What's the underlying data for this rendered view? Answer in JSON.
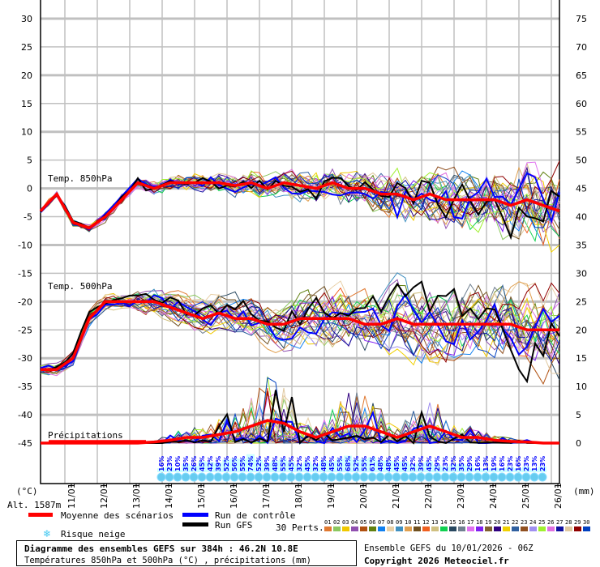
{
  "chart_data": {
    "type": "line",
    "title": "Diagramme des ensembles GEFS sur 384h : 46.2N 10.8E",
    "subtitle": "Températures 850hPa et 500hPa (°C) , précipitations (mm)",
    "left_axis": {
      "label": "(°C)",
      "ticks": [
        30,
        25,
        20,
        15,
        10,
        5,
        0,
        -5,
        -10,
        -15,
        -20,
        -25,
        -30,
        -35,
        -40,
        -45
      ],
      "range": [
        -45,
        30
      ]
    },
    "right_axis": {
      "label": "(mm)",
      "ticks": [
        75,
        70,
        65,
        60,
        55,
        50,
        45,
        40,
        35,
        30,
        25,
        20,
        15,
        10,
        5,
        0
      ],
      "range": [
        0,
        75
      ]
    },
    "x_ticks": [
      "11/01",
      "12/01",
      "13/01",
      "14/01",
      "15/01",
      "16/01",
      "17/01",
      "18/01",
      "19/01",
      "20/01",
      "21/01",
      "22/01",
      "23/01",
      "24/01",
      "25/01",
      "26/01"
    ],
    "time_step_hours": 12,
    "grid": true,
    "panel_labels": {
      "t850": "Temp. 850hPa",
      "t500": "Temp. 500hPa",
      "precip": "Précipitations"
    },
    "altitude": "Alt. 1587m",
    "series": [
      {
        "name": "Moyenne des scénarios",
        "key": "t850",
        "values": [
          -4,
          -1,
          -6,
          -7,
          -5,
          -2,
          1,
          0,
          1,
          1,
          1,
          1,
          0.5,
          1,
          0,
          1,
          0.5,
          0,
          1,
          0,
          0,
          -1,
          -1,
          -2,
          -1,
          -2,
          -2,
          -2,
          -2,
          -3,
          -2,
          -3,
          -4
        ]
      },
      {
        "name": "Moyenne des scénarios",
        "key": "t500",
        "values": [
          -32,
          -32,
          -30,
          -23,
          -20,
          -20,
          -20,
          -20,
          -21,
          -22,
          -23,
          -22,
          -23,
          -23,
          -24,
          -24,
          -23,
          -23,
          -23,
          -23,
          -24,
          -24,
          -23,
          -24,
          -24,
          -24,
          -24,
          -24,
          -24,
          -24,
          -25,
          -25,
          -25
        ]
      },
      {
        "name": "Moyenne des scénarios",
        "key": "precip_mm",
        "values": [
          0,
          0,
          0,
          0,
          0,
          0,
          0,
          0.2,
          0.5,
          1,
          1,
          1.5,
          2,
          3,
          4,
          3.5,
          2,
          1,
          2,
          3,
          3,
          2,
          1,
          2,
          3,
          2,
          1,
          1,
          0.5,
          0.3,
          0.2,
          0,
          0
        ]
      }
    ],
    "snow_risk_percent": [
      "16%",
      "23%",
      "10%",
      "35%",
      "26%",
      "45%",
      "42%",
      "39%",
      "52%",
      "56%",
      "55%",
      "74%",
      "52%",
      "39%",
      "48%",
      "55%",
      "45%",
      "32%",
      "45%",
      "32%",
      "48%",
      "45%",
      "55%",
      "68%",
      "52%",
      "55%",
      "61%",
      "48%",
      "48%",
      "45%",
      "45%",
      "32%",
      "39%",
      "45%",
      "29%",
      "23%",
      "32%",
      "35%",
      "29%",
      "16%",
      "13%",
      "19%",
      "16%",
      "23%",
      "16%",
      "23%",
      "13%",
      "23%"
    ],
    "colors": {
      "mean": "#ff0000",
      "control": "#0000ff",
      "gfs": "#000000",
      "snow": "#44c8f0"
    }
  },
  "legend": {
    "mean": "Moyenne des scénarios",
    "control": "Run de contrôle",
    "gfs": "Run GFS",
    "snow": "Risque neige",
    "perts_label": "30 Perts.",
    "perts": [
      "01",
      "02",
      "03",
      "04",
      "05",
      "06",
      "07",
      "08",
      "09",
      "10",
      "11",
      "12",
      "13",
      "14",
      "15",
      "16",
      "17",
      "18",
      "19",
      "20",
      "21",
      "22",
      "23",
      "24",
      "25",
      "26",
      "27",
      "28",
      "29",
      "30"
    ],
    "pert_colors": [
      "#e07830",
      "#8cc860",
      "#f0c800",
      "#9050b0",
      "#b05010",
      "#608010",
      "#1080f0",
      "#e8d0a8",
      "#4090c0",
      "#e0a050",
      "#705020",
      "#f06020",
      "#d0c080",
      "#10d050",
      "#284860",
      "#708090",
      "#e070f0",
      "#8020f0",
      "#806030",
      "#300080",
      "#f0d000",
      "#3060a0",
      "#905020",
      "#a090f0",
      "#a0f030",
      "#e070e0",
      "#1010a0",
      "#e0c8a0",
      "#900000",
      "#0040c0"
    ]
  },
  "footer": {
    "title": "Diagramme des ensembles GEFS sur 384h : 46.2N 10.8E",
    "subtitle": "Températures 850hPa et 500hPa (°C) , précipitations (mm)",
    "run": "Ensemble GEFS du 10/01/2026 - 06Z",
    "copyright": "Copyright 2026 Meteociel.fr"
  }
}
